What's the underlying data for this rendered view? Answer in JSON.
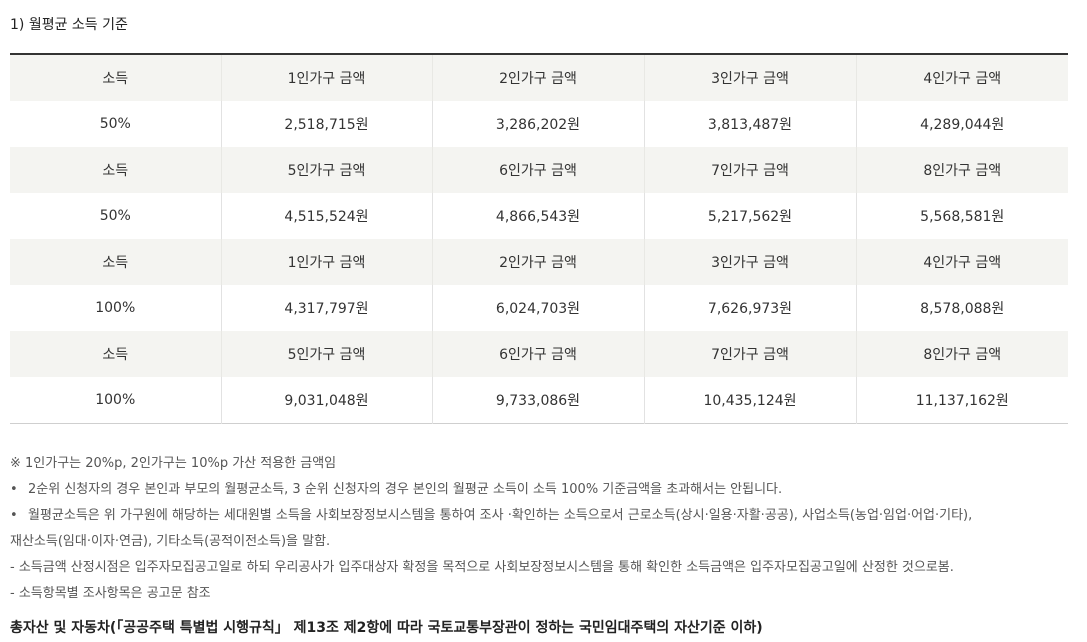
{
  "section_title": "1) 월평균 소득 기준",
  "table": {
    "rows": [
      {
        "kind": "head",
        "cells": [
          "소득",
          "1인가구 금액",
          "2인가구 금액",
          "3인가구 금액",
          "4인가구 금액"
        ]
      },
      {
        "kind": "val",
        "cells": [
          "50%",
          "2,518,715원",
          "3,286,202원",
          "3,813,487원",
          "4,289,044원"
        ]
      },
      {
        "kind": "head",
        "cells": [
          "소득",
          "5인가구 금액",
          "6인가구 금액",
          "7인가구 금액",
          "8인가구 금액"
        ]
      },
      {
        "kind": "val",
        "cells": [
          "50%",
          "4,515,524원",
          "4,866,543원",
          "5,217,562원",
          "5,568,581원"
        ]
      },
      {
        "kind": "head",
        "cells": [
          "소득",
          "1인가구 금액",
          "2인가구 금액",
          "3인가구 금액",
          "4인가구 금액"
        ]
      },
      {
        "kind": "val",
        "cells": [
          "100%",
          "4,317,797원",
          "6,024,703원",
          "7,626,973원",
          "8,578,088원"
        ]
      },
      {
        "kind": "head",
        "cells": [
          "소득",
          "5인가구 금액",
          "6인가구 금액",
          "7인가구 금액",
          "8인가구 금액"
        ]
      },
      {
        "kind": "val",
        "cells": [
          "100%",
          "9,031,048원",
          "9,733,086원",
          "10,435,124원",
          "11,137,162원"
        ]
      }
    ]
  },
  "notes": {
    "n1": "※ 1인가구는 20%p, 2인가구는 10%p 가산 적용한 금액임",
    "n2_marker": "•",
    "n2": "2순위 신청자의 경우 본인과 부모의 월평균소득, 3 순위 신청자의 경우 본인의 월평균 소득이 소득 100% 기준금액을 초과해서는 안됩니다.",
    "n3_marker": "•",
    "n3": "월평균소득은 위 가구원에 해당하는 세대원별 소득을 사회보장정보시스템을 통하여 조사 ·확인하는 소득으로서 근로소득(상시·일용·자활·공공), 사업소득(농업·임업·어업·기타),",
    "n3b": "재산소득(임대·이자·연금), 기타소득(공적이전소득)을 말함.",
    "n4": "- 소득금액 산정시점은 입주자모집공고일로 하되 우리공사가 입주대상자 확정을 목적으로 사회보장정보시스템을 통해 확인한 소득금액은 입주자모집공고일에 산정한 것으로봄.",
    "n5": "- 소득항목별 조사항목은 공고문 참조"
  },
  "footer": "총자산 및 자동차(「공공주택 특별법 시행규칙」 제13조 제2항에 따라 국토교통부장관이 정하는 국민임대주택의 자산기준 이하)"
}
